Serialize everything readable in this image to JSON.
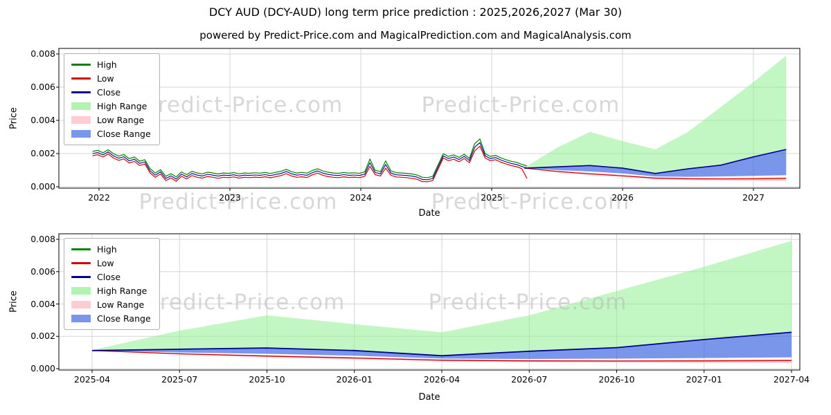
{
  "title": "DCY AUD (DCY-AUD) long term price prediction : 2025,2026,2027 (Mar 30)",
  "subtitle": "powered by Predict-Price.com and MagicalPrediction.com and MagicalAnalysis.com",
  "watermark": "Predict-Price.com",
  "colors": {
    "high": "#008000",
    "low": "#d10000",
    "close": "#00008b",
    "high_range": "#90ee90",
    "low_range": "#ffb6c1",
    "close_range": "#4169e1",
    "grid": "#d4d4d4",
    "axis": "#000000",
    "watermark": "#bdbdbd"
  },
  "chart_data": {
    "type": "line",
    "legend": [
      "High",
      "Low",
      "Close",
      "High Range",
      "Low Range",
      "Close Range"
    ],
    "ytick_labels": [
      "0.000",
      "0.002",
      "0.004",
      "0.006",
      "0.008"
    ],
    "ytick_values": [
      0,
      0.002,
      0.004,
      0.006,
      0.008
    ],
    "charts": [
      {
        "name": "history-and-forecast",
        "xlabel": "Date",
        "ylabel": "Price",
        "ylim": [
          0,
          0.008
        ],
        "grid": true,
        "legend_position": "upper-left",
        "xtick_labels": [
          "2022",
          "2023",
          "2024",
          "2025",
          "2026",
          "2027"
        ],
        "xtick_values": [
          2022,
          2023,
          2024,
          2025,
          2026,
          2027
        ]
      },
      {
        "name": "forecast-detail",
        "xlabel": "Date",
        "ylabel": "Price",
        "ylim": [
          0,
          0.008
        ],
        "grid": true,
        "legend_position": "upper-left",
        "xticks_from": "forecast"
      }
    ],
    "historical": {
      "x_start": 2021.95,
      "x_step": 0.04,
      "high": [
        0.00213,
        0.00219,
        0.00205,
        0.00223,
        0.00199,
        0.00185,
        0.00194,
        0.00169,
        0.00179,
        0.00154,
        0.00163,
        0.00109,
        0.00083,
        0.00103,
        0.00063,
        0.00079,
        0.00059,
        0.00089,
        0.00073,
        0.00093,
        0.00083,
        0.00078,
        0.00088,
        0.00083,
        0.00077,
        0.00083,
        0.00081,
        0.00085,
        0.00078,
        0.00083,
        0.00081,
        0.00084,
        0.00082,
        0.00086,
        0.0008,
        0.00087,
        0.00093,
        0.00105,
        0.00091,
        0.00083,
        0.00086,
        0.00082,
        0.00098,
        0.00108,
        0.00095,
        0.00087,
        0.00083,
        0.00081,
        0.00086,
        0.00082,
        0.00084,
        0.00081,
        0.00089,
        0.00167,
        0.00099,
        0.00091,
        0.00156,
        0.00095,
        0.00085,
        0.00083,
        0.00081,
        0.00077,
        0.00071,
        0.00057,
        0.00055,
        0.00063,
        0.00131,
        0.00199,
        0.00183,
        0.00192,
        0.00177,
        0.00196,
        0.00171,
        0.0026,
        0.00288,
        0.00199,
        0.00183,
        0.00189,
        0.00174,
        0.00163,
        0.00153,
        0.00147,
        0.00135,
        0.00125
      ],
      "low": [
        0.00187,
        0.00193,
        0.00179,
        0.00197,
        0.00173,
        0.00159,
        0.00168,
        0.00143,
        0.00153,
        0.00128,
        0.00137,
        0.00083,
        0.00057,
        0.00077,
        0.00037,
        0.00053,
        0.00033,
        0.00063,
        0.00047,
        0.00067,
        0.00057,
        0.00052,
        0.00062,
        0.00057,
        0.00051,
        0.00057,
        0.00055,
        0.00059,
        0.00052,
        0.00057,
        0.00055,
        0.00058,
        0.00056,
        0.0006,
        0.00054,
        0.00061,
        0.00067,
        0.00079,
        0.00065,
        0.00057,
        0.0006,
        0.00056,
        0.00072,
        0.00082,
        0.00069,
        0.00061,
        0.00057,
        0.00055,
        0.0006,
        0.00056,
        0.00058,
        0.00055,
        0.00063,
        0.00123,
        0.00073,
        0.00065,
        0.00112,
        0.00069,
        0.00059,
        0.00057,
        0.00055,
        0.00051,
        0.00045,
        0.00031,
        0.0003,
        0.00037,
        0.00105,
        0.00173,
        0.00157,
        0.00166,
        0.00151,
        0.0017,
        0.00145,
        0.00216,
        0.00244,
        0.00173,
        0.00157,
        0.00163,
        0.00148,
        0.00137,
        0.00127,
        0.00121,
        0.00109,
        0.0005
      ],
      "close": [
        0.002,
        0.00206,
        0.00192,
        0.0021,
        0.00186,
        0.00172,
        0.00181,
        0.00156,
        0.00166,
        0.00141,
        0.0015,
        0.00096,
        0.0007,
        0.0009,
        0.0005,
        0.00066,
        0.00046,
        0.00076,
        0.0006,
        0.0008,
        0.0007,
        0.00065,
        0.00075,
        0.0007,
        0.00064,
        0.0007,
        0.00068,
        0.00072,
        0.00065,
        0.0007,
        0.00068,
        0.00071,
        0.00069,
        0.00073,
        0.00067,
        0.00074,
        0.0008,
        0.00092,
        0.00078,
        0.0007,
        0.00073,
        0.00069,
        0.00085,
        0.00095,
        0.00082,
        0.00074,
        0.0007,
        0.00068,
        0.00073,
        0.00069,
        0.00071,
        0.00068,
        0.00076,
        0.00145,
        0.00086,
        0.00078,
        0.00134,
        0.00082,
        0.00072,
        0.0007,
        0.00068,
        0.00064,
        0.00058,
        0.00044,
        0.00042,
        0.0005,
        0.00118,
        0.00186,
        0.0017,
        0.00179,
        0.00164,
        0.00183,
        0.00158,
        0.00238,
        0.00266,
        0.00186,
        0.0017,
        0.00176,
        0.00161,
        0.0015,
        0.0014,
        0.00134,
        0.00122,
        0.00112
      ]
    },
    "forecast": {
      "x_labels": [
        "2025-04",
        "2025-07",
        "2025-10",
        "2026-01",
        "2026-04",
        "2026-07",
        "2026-10",
        "2027-01",
        "2027-04"
      ],
      "x": [
        2025.25,
        2025.5,
        2025.75,
        2026.0,
        2026.25,
        2026.5,
        2026.75,
        2027.0,
        2027.25
      ],
      "high_upper": [
        0.00115,
        0.00235,
        0.0033,
        0.00275,
        0.00225,
        0.0033,
        0.0048,
        0.0063,
        0.0079
      ],
      "close": [
        0.00112,
        0.0012,
        0.00128,
        0.00112,
        0.0008,
        0.00108,
        0.0013,
        0.0018,
        0.00225
      ],
      "close_lower": [
        0.00112,
        0.001,
        0.00092,
        0.0008,
        0.00062,
        0.0006,
        0.00062,
        0.00066,
        0.0007
      ],
      "low": [
        0.00112,
        0.00092,
        0.00078,
        0.00066,
        0.00052,
        0.00048,
        0.00047,
        0.00048,
        0.0005
      ],
      "low_upper": [
        0.00112,
        0.00096,
        0.00084,
        0.00072,
        0.00058,
        0.00056,
        0.00055,
        0.00056,
        0.00058
      ],
      "low_lower": [
        0.00112,
        0.00086,
        0.0007,
        0.00058,
        0.00044,
        0.0004,
        0.00038,
        0.00036,
        0.00035
      ]
    }
  }
}
